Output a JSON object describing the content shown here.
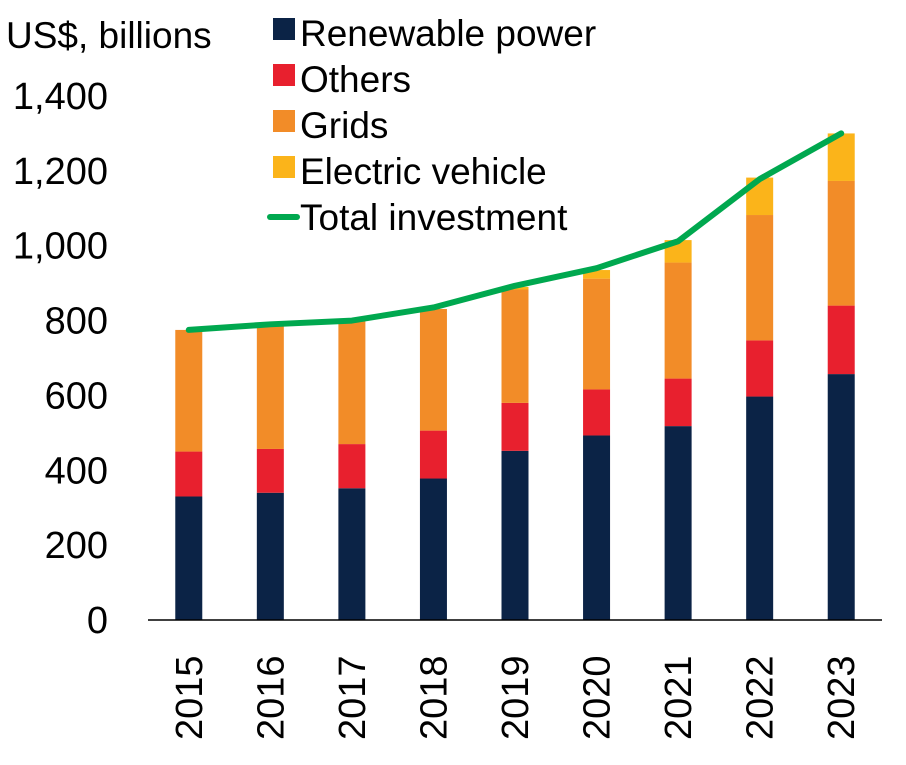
{
  "chart_data": {
    "type": "bar",
    "stacked": true,
    "title": "",
    "ylabel": "US$, billions",
    "xlabel": "",
    "ylim": [
      0,
      1400
    ],
    "yticks": [
      "0",
      "200",
      "400",
      "600",
      "800",
      "1,000",
      "1,200",
      "1,400"
    ],
    "categories": [
      "2015",
      "2016",
      "2017",
      "2018",
      "2019",
      "2020",
      "2021",
      "2022",
      "2023"
    ],
    "series": [
      {
        "name": "Renewable power",
        "color": "#0b2346",
        "values": [
          330,
          340,
          352,
          378,
          452,
          493,
          518,
          597,
          657
        ]
      },
      {
        "name": "Others",
        "color": "#e8202e",
        "values": [
          120,
          117,
          118,
          128,
          128,
          123,
          127,
          150,
          183
        ]
      },
      {
        "name": "Grids",
        "color": "#f28c28",
        "values": [
          325,
          330,
          330,
          325,
          303,
          296,
          310,
          335,
          333
        ]
      },
      {
        "name": "Electric vehicle",
        "color": "#fbb41a",
        "values": [
          0,
          0,
          0,
          0,
          7,
          23,
          60,
          100,
          127
        ]
      }
    ],
    "lines": [
      {
        "name": "Total investment",
        "color": "#00a84f",
        "values": [
          775,
          790,
          800,
          835,
          893,
          940,
          1012,
          1178,
          1300
        ]
      }
    ],
    "legend_position": "top",
    "grid": false
  }
}
